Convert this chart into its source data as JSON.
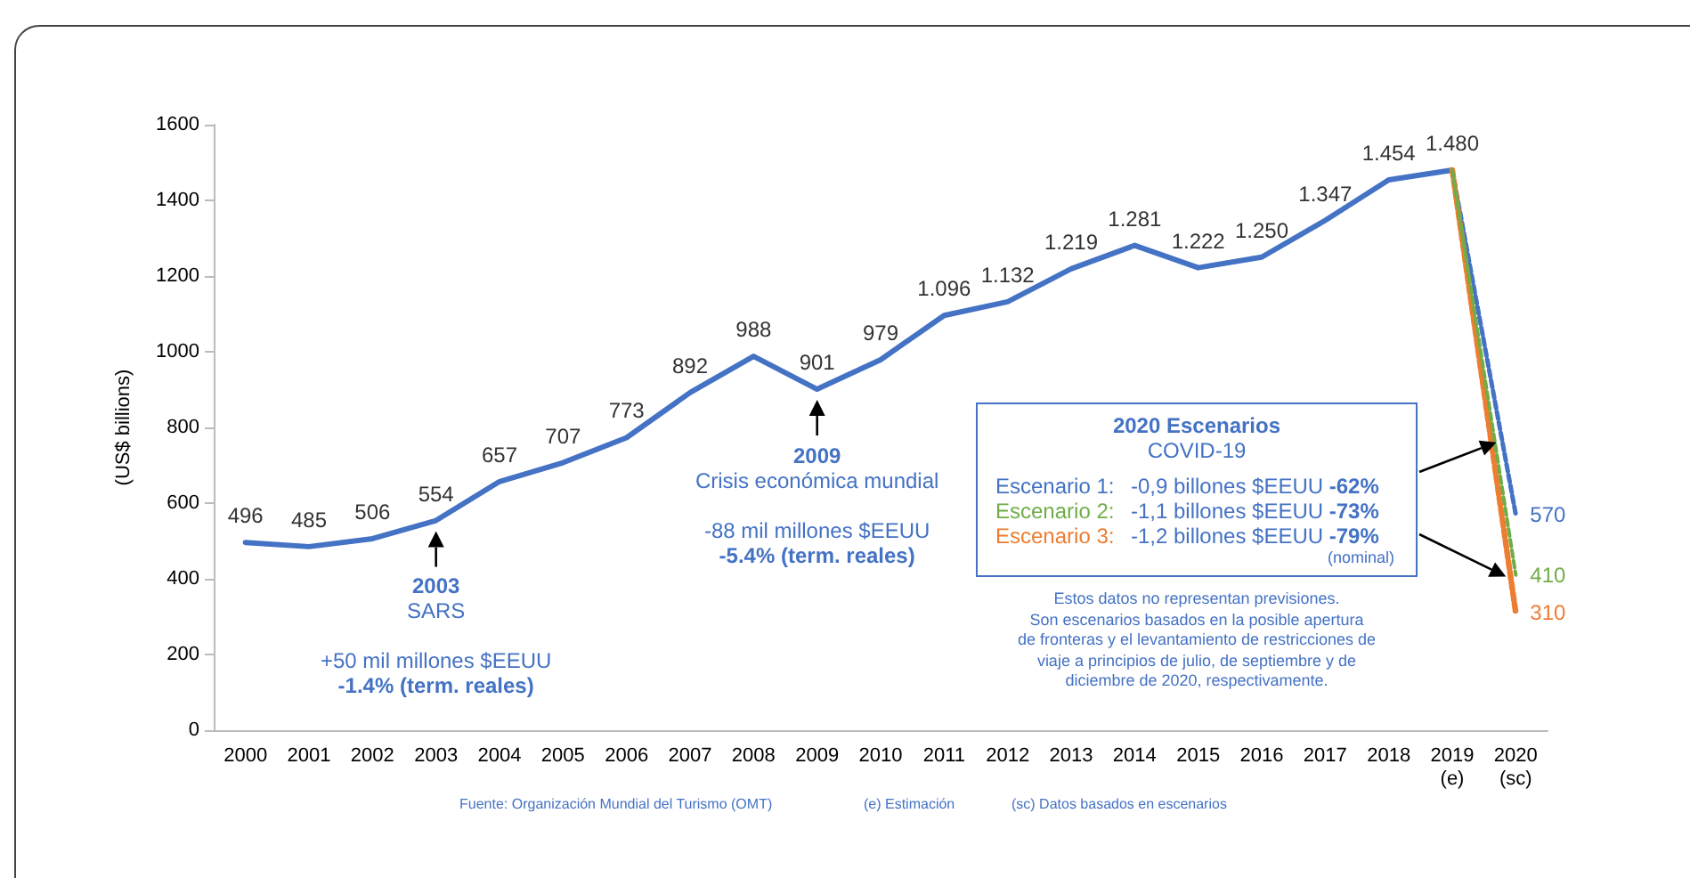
{
  "chart_data": {
    "type": "line",
    "ylabel": "(US$ billions)",
    "legend_title": "2020 Escenarios",
    "categories": [
      "2000",
      "2001",
      "2002",
      "2003",
      "2004",
      "2005",
      "2006",
      "2007",
      "2008",
      "2009",
      "2010",
      "2011",
      "2012",
      "2013",
      "2014",
      "2015",
      "2016",
      "2017",
      "2018",
      "2019\n(e)",
      "2020\n(sc)"
    ],
    "ylim": [
      0,
      1600
    ],
    "yticks": [
      0,
      200,
      400,
      600,
      800,
      1000,
      1200,
      1400,
      1600
    ],
    "grid": false,
    "legend": "center",
    "marker": "none",
    "series": [
      {
        "color": "#4472c4",
        "line_style": "solid",
        "values": [
          496,
          485,
          506,
          554,
          657,
          707,
          773,
          892,
          988,
          901,
          979,
          1096,
          1132,
          1219,
          1281,
          1222,
          1250,
          1347,
          1454,
          1480,
          null
        ],
        "value_labels": [
          "496",
          "485",
          "506",
          "554",
          "657",
          "707",
          "773",
          "892",
          "988",
          "901",
          "979",
          "1.096",
          "1.132",
          "1.219",
          "1.281",
          "1.222",
          "1.250",
          "1.347",
          "1.454",
          "1.480",
          null
        ]
      },
      {
        "name": "Escenario 1:",
        "color": "#4472c4",
        "line_style": "dashed",
        "values": [
          null,
          null,
          null,
          null,
          null,
          null,
          null,
          null,
          null,
          null,
          null,
          null,
          null,
          null,
          null,
          null,
          null,
          null,
          null,
          1480,
          570
        ],
        "value_labels": [
          null,
          null,
          null,
          null,
          null,
          null,
          null,
          null,
          null,
          null,
          null,
          null,
          null,
          null,
          null,
          null,
          null,
          null,
          null,
          null,
          "570"
        ]
      },
      {
        "name": "Escenario 2:",
        "color": "#70ad47",
        "line_style": "dashed",
        "values": [
          null,
          null,
          null,
          null,
          null,
          null,
          null,
          null,
          null,
          null,
          null,
          null,
          null,
          null,
          null,
          null,
          null,
          null,
          null,
          1480,
          410
        ],
        "value_labels": [
          null,
          null,
          null,
          null,
          null,
          null,
          null,
          null,
          null,
          null,
          null,
          null,
          null,
          null,
          null,
          null,
          null,
          null,
          null,
          null,
          "410"
        ]
      },
      {
        "name": "Escenario 3:",
        "color": "#ed7d31",
        "line_style": "dashed",
        "values": [
          null,
          null,
          null,
          null,
          null,
          null,
          null,
          null,
          null,
          null,
          null,
          null,
          null,
          null,
          null,
          null,
          null,
          null,
          null,
          1480,
          310
        ],
        "value_labels": [
          null,
          null,
          null,
          null,
          null,
          null,
          null,
          null,
          null,
          null,
          null,
          null,
          null,
          null,
          null,
          null,
          null,
          null,
          null,
          null,
          "310"
        ]
      }
    ],
    "annotations": [
      {
        "text": "2003\nSARS\n\n+50 mil millones $EEUU\n-1.4% (term. reales)",
        "x": "2003",
        "y": 554
      },
      {
        "text": "2009\nCrisis económica mundial\n\n-88 mil millones $EEUU\n-5.4% (term. reales)",
        "x": "2009",
        "y": 901
      },
      "COVID-19",
      "-0,9 billones $EEUU -62%",
      "-1,1 billones $EEUU -73%",
      "-1,2 billones $EEUU -79%",
      "(nominal)",
      "Estos datos no representan previsiones.\nSon escenarios basados en la posible apertura\nde fronteras y el levantamiento de restricciones de\nviaje a principios de julio, de septiembre y de\ndiciembre de 2020, respectivamente.",
      "Fuente: Organización Mundial del Turismo (OMT)",
      "(e) Estimación",
      "(sc) Datos basados en escenarios"
    ]
  }
}
